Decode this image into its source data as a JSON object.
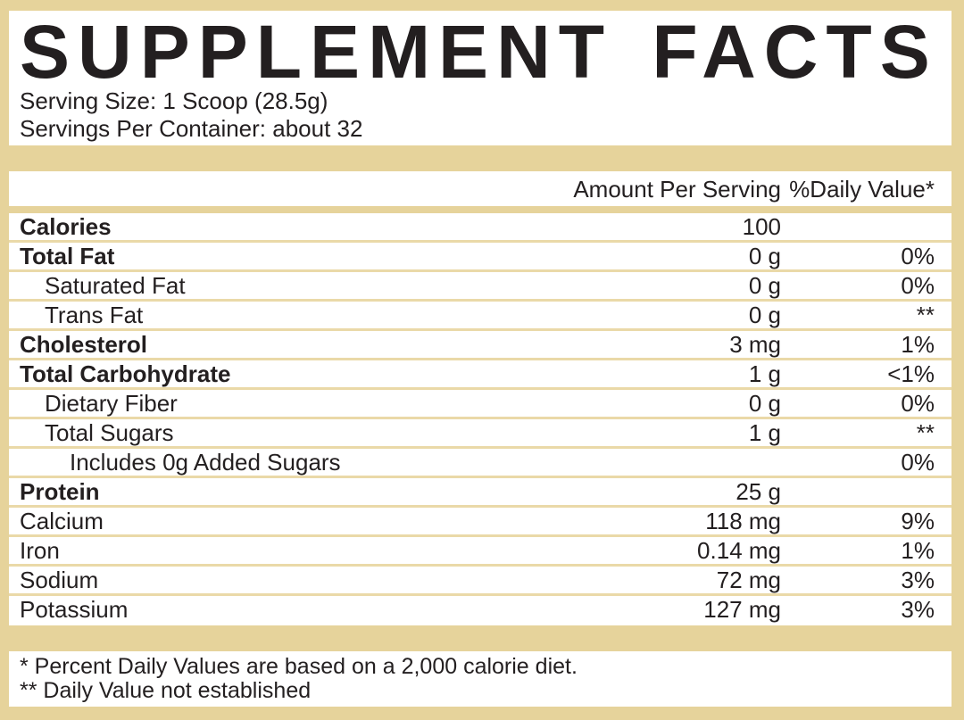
{
  "colors": {
    "band": "#e6d39b",
    "rule": "#ead9a8",
    "text": "#231f20",
    "background": "#ffffff"
  },
  "label": {
    "title": "SUPPLEMENT FACTS",
    "serving_size": "Serving Size: 1 Scoop (28.5g)",
    "servings_per_container": "Servings Per Container: about 32",
    "header": {
      "amount": "Amount Per Serving",
      "daily_value": "%Daily Value*"
    },
    "rows": [
      {
        "name": "Calories",
        "amount": "100",
        "dv": "",
        "bold": true,
        "indent": 0
      },
      {
        "name": "Total Fat",
        "amount": "0 g",
        "dv": "0%",
        "bold": true,
        "indent": 0
      },
      {
        "name": "Saturated Fat",
        "amount": "0 g",
        "dv": "0%",
        "bold": false,
        "indent": 1
      },
      {
        "name": "Trans Fat",
        "amount": "0 g",
        "dv": "**",
        "bold": false,
        "indent": 1
      },
      {
        "name": "Cholesterol",
        "amount": "3 mg",
        "dv": "1%",
        "bold": true,
        "indent": 0
      },
      {
        "name": "Total Carbohydrate",
        "amount": "1 g",
        "dv": "<1%",
        "bold": true,
        "indent": 0
      },
      {
        "name": "Dietary Fiber",
        "amount": "0 g",
        "dv": "0%",
        "bold": false,
        "indent": 1
      },
      {
        "name": "Total Sugars",
        "amount": "1 g",
        "dv": "**",
        "bold": false,
        "indent": 1
      },
      {
        "name": "Includes 0g Added Sugars",
        "amount": "",
        "dv": "0%",
        "bold": false,
        "indent": 2
      },
      {
        "name": "Protein",
        "amount": "25 g",
        "dv": "",
        "bold": true,
        "indent": 0
      },
      {
        "name": "Calcium",
        "amount": "118 mg",
        "dv": "9%",
        "bold": false,
        "indent": 0
      },
      {
        "name": "Iron",
        "amount": "0.14 mg",
        "dv": "1%",
        "bold": false,
        "indent": 0
      },
      {
        "name": "Sodium",
        "amount": "72 mg",
        "dv": "3%",
        "bold": false,
        "indent": 0
      },
      {
        "name": "Potassium",
        "amount": "127 mg",
        "dv": "3%",
        "bold": false,
        "indent": 0
      }
    ],
    "footnotes": [
      "* Percent Daily Values are based on a 2,000 calorie diet.",
      "** Daily Value not established"
    ]
  }
}
